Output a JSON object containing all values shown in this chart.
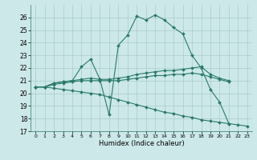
{
  "bg_color": "#cce8e8",
  "grid_color": "#aacccc",
  "line_color": "#2a7a6a",
  "markersize": 2.0,
  "linewidth": 0.8,
  "xlabel": "Humidex (Indice chaleur)",
  "ylim": [
    17,
    27
  ],
  "xlim": [
    -0.5,
    23.5
  ],
  "yticks": [
    17,
    18,
    19,
    20,
    21,
    22,
    23,
    24,
    25,
    26
  ],
  "xticks": [
    0,
    1,
    2,
    3,
    4,
    5,
    6,
    7,
    8,
    9,
    10,
    11,
    12,
    13,
    14,
    15,
    16,
    17,
    18,
    19,
    20,
    21,
    22,
    23
  ],
  "series": [
    {
      "x": [
        0,
        1,
        2,
        3,
        4,
        5,
        6,
        7,
        8,
        9,
        10,
        11,
        12,
        13,
        14,
        15,
        16,
        17,
        18,
        19,
        20,
        21
      ],
      "y": [
        20.5,
        20.5,
        20.8,
        20.9,
        21.0,
        22.1,
        22.7,
        21.1,
        18.3,
        23.8,
        24.6,
        26.1,
        25.8,
        26.2,
        25.8,
        25.2,
        24.7,
        23.0,
        22.0,
        20.3,
        19.3,
        17.6
      ]
    },
    {
      "x": [
        0,
        1,
        2,
        3,
        4,
        5,
        6,
        7,
        8,
        9,
        10,
        11,
        12,
        13,
        14,
        15,
        16,
        17,
        18,
        19,
        20,
        21
      ],
      "y": [
        20.5,
        20.5,
        20.8,
        20.9,
        21.0,
        21.1,
        21.2,
        21.1,
        21.1,
        21.2,
        21.3,
        21.5,
        21.6,
        21.7,
        21.8,
        21.8,
        21.9,
        22.0,
        22.1,
        21.5,
        21.2,
        21.0
      ]
    },
    {
      "x": [
        0,
        1,
        2,
        3,
        4,
        5,
        6,
        7,
        8,
        9,
        10,
        11,
        12,
        13,
        14,
        15,
        16,
        17,
        18,
        19,
        20,
        21
      ],
      "y": [
        20.5,
        20.5,
        20.7,
        20.8,
        20.9,
        21.0,
        21.0,
        21.0,
        21.0,
        21.0,
        21.1,
        21.2,
        21.3,
        21.4,
        21.4,
        21.5,
        21.5,
        21.6,
        21.5,
        21.3,
        21.1,
        20.9
      ]
    },
    {
      "x": [
        0,
        1,
        2,
        3,
        4,
        5,
        6,
        7,
        8,
        9,
        10,
        11,
        12,
        13,
        14,
        15,
        16,
        17,
        18,
        19,
        20,
        21,
        22,
        23
      ],
      "y": [
        20.5,
        20.5,
        20.4,
        20.3,
        20.2,
        20.1,
        20.0,
        19.9,
        19.7,
        19.5,
        19.3,
        19.1,
        18.9,
        18.7,
        18.5,
        18.4,
        18.2,
        18.1,
        17.9,
        17.8,
        17.7,
        17.6,
        17.5,
        17.4
      ]
    }
  ]
}
